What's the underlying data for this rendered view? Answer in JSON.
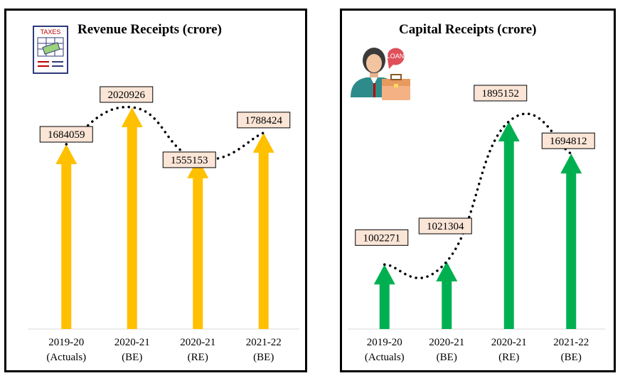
{
  "chart_data": [
    {
      "type": "bar",
      "title": "Revenue Receipts (crore)",
      "categories": [
        [
          "2019-20",
          "(Actuals)"
        ],
        [
          "2020-21",
          "(BE)"
        ],
        [
          "2020-21",
          "(RE)"
        ],
        [
          "2021-22",
          "(BE)"
        ]
      ],
      "values": [
        1684059,
        2020926,
        1555153,
        1788424
      ],
      "data_labels": [
        "1684059",
        "2020926",
        "1555153",
        "1788424"
      ],
      "colors": {
        "arrow": "#FFC000",
        "label_fill": "#FBE5D6",
        "trend": "#000000"
      },
      "icon": "taxes-document-icon",
      "icon_text": "TAXES"
    },
    {
      "type": "bar",
      "title": "Capital Receipts (crore)",
      "categories": [
        [
          "2019-20",
          "(Actuals)"
        ],
        [
          "2020-21",
          "(BE)"
        ],
        [
          "2020-21",
          "(RE)"
        ],
        [
          "2021-22",
          "(BE)"
        ]
      ],
      "values": [
        1002271,
        1021304,
        1895152,
        1694812
      ],
      "data_labels": [
        "1002271",
        "1021304",
        "1895152",
        "1694812"
      ],
      "colors": {
        "arrow": "#00B050",
        "label_fill": "#FBE5D6",
        "trend": "#000000"
      },
      "icon": "loan-businesswoman-icon",
      "icon_text": "LOAN"
    }
  ]
}
